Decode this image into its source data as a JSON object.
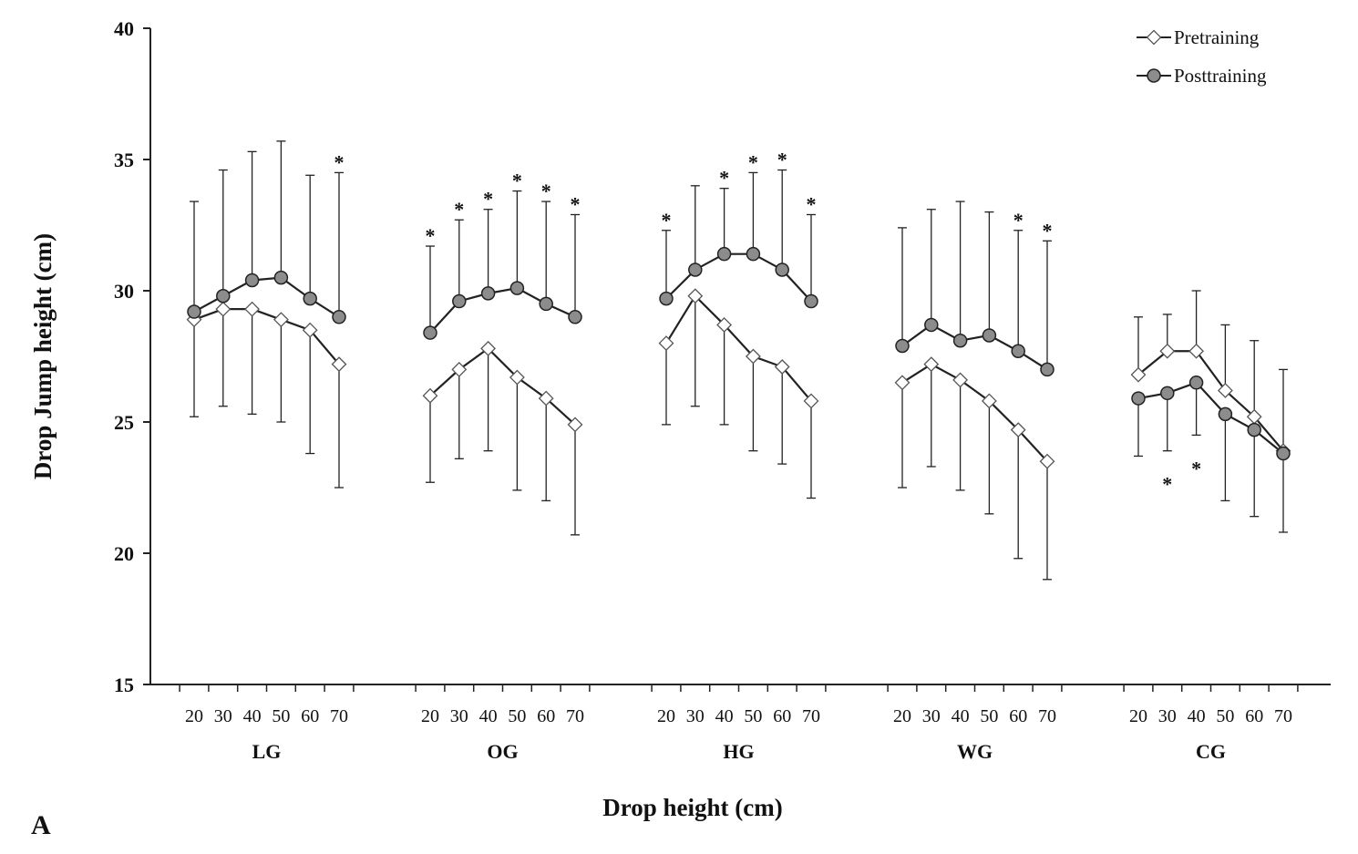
{
  "chart_data": {
    "type": "line",
    "panel_label": "A",
    "xlabel": "Drop height (cm)",
    "ylabel": "Drop Jump height (cm)",
    "ylim": [
      15,
      40
    ],
    "yticks": [
      15,
      20,
      25,
      30,
      35,
      40
    ],
    "drop_heights": [
      "20",
      "30",
      "40",
      "50",
      "60",
      "70"
    ],
    "legend_position": "top-right",
    "series_names": [
      "Pretraining",
      "Posttraining"
    ],
    "colors": {
      "pre_fill": "#ffffff",
      "post_fill": "#8c8c8c",
      "line": "#222222",
      "error_bar": "#222222"
    },
    "groups": [
      {
        "name": "LG",
        "pre": {
          "values": [
            28.9,
            29.3,
            29.3,
            28.9,
            28.5,
            27.2
          ],
          "sd": [
            3.7,
            3.7,
            4.0,
            3.9,
            4.7,
            4.7
          ]
        },
        "post": {
          "values": [
            29.2,
            29.8,
            30.4,
            30.5,
            29.7,
            29.0
          ],
          "sd": [
            4.2,
            4.8,
            4.9,
            5.2,
            4.7,
            5.5
          ]
        },
        "significant": [
          false,
          false,
          false,
          false,
          false,
          true
        ],
        "star_position": "above"
      },
      {
        "name": "OG",
        "pre": {
          "values": [
            26.0,
            27.0,
            27.8,
            26.7,
            25.9,
            24.9
          ],
          "sd": [
            3.3,
            3.4,
            3.9,
            4.3,
            3.9,
            4.2
          ]
        },
        "post": {
          "values": [
            28.4,
            29.6,
            29.9,
            30.1,
            29.5,
            29.0
          ],
          "sd": [
            3.3,
            3.1,
            3.2,
            3.7,
            3.9,
            3.9
          ]
        },
        "significant": [
          true,
          true,
          true,
          true,
          true,
          true
        ],
        "star_position": "above"
      },
      {
        "name": "HG",
        "pre": {
          "values": [
            28.0,
            29.8,
            28.7,
            27.5,
            27.1,
            25.8
          ],
          "sd": [
            3.1,
            4.2,
            3.8,
            3.6,
            3.7,
            3.7
          ]
        },
        "post": {
          "values": [
            29.7,
            30.8,
            31.4,
            31.4,
            30.8,
            29.6
          ],
          "sd": [
            2.6,
            3.2,
            2.5,
            3.1,
            3.8,
            3.3
          ]
        },
        "significant": [
          true,
          false,
          true,
          true,
          true,
          true
        ],
        "star_position": "above"
      },
      {
        "name": "WG",
        "pre": {
          "values": [
            26.5,
            27.2,
            26.6,
            25.8,
            24.7,
            23.5
          ],
          "sd": [
            4.0,
            3.9,
            4.2,
            4.3,
            4.9,
            4.5
          ]
        },
        "post": {
          "values": [
            27.9,
            28.7,
            28.1,
            28.3,
            27.7,
            27.0
          ],
          "sd": [
            4.5,
            4.4,
            5.3,
            4.7,
            4.6,
            4.9
          ]
        },
        "significant": [
          false,
          false,
          false,
          false,
          true,
          true
        ],
        "star_position": "above"
      },
      {
        "name": "CG",
        "pre": {
          "values": [
            26.8,
            27.7,
            27.7,
            26.2,
            25.2,
            23.9
          ],
          "sd": [
            2.2,
            1.4,
            2.3,
            2.5,
            2.9,
            3.1
          ]
        },
        "post": {
          "values": [
            25.9,
            26.1,
            26.5,
            25.3,
            24.7,
            23.8
          ],
          "sd": [
            2.2,
            2.2,
            2.0,
            3.3,
            3.3,
            3.0
          ]
        },
        "significant": [
          false,
          true,
          true,
          false,
          false,
          false
        ],
        "star_position": "below"
      }
    ]
  }
}
